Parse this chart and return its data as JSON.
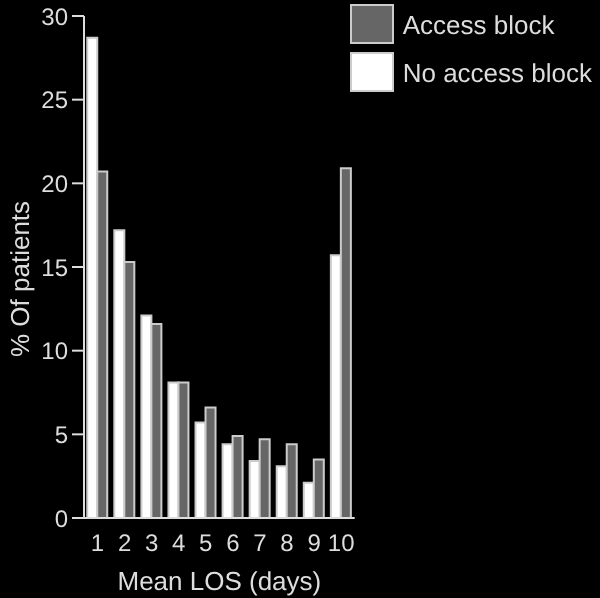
{
  "chart_data": {
    "type": "bar",
    "xlabel": "Mean LOS (days)",
    "ylabel": "% Of patients",
    "categories": [
      "1",
      "2",
      "3",
      "4",
      "5",
      "6",
      "7",
      "8",
      "9",
      "10"
    ],
    "series": [
      {
        "name": "No access block",
        "color": "#ffffff",
        "values": [
          28.7,
          17.2,
          12.1,
          8.1,
          5.7,
          4.4,
          3.4,
          3.1,
          2.1,
          15.7
        ]
      },
      {
        "name": "Access block",
        "color": "#666666",
        "values": [
          20.7,
          15.3,
          11.6,
          8.1,
          6.6,
          4.9,
          4.7,
          4.4,
          3.5,
          20.9
        ]
      }
    ],
    "ylim": [
      0,
      30
    ],
    "yticks": [
      0,
      5,
      10,
      15,
      20,
      25,
      30
    ],
    "grid": false,
    "legend": "top right"
  }
}
